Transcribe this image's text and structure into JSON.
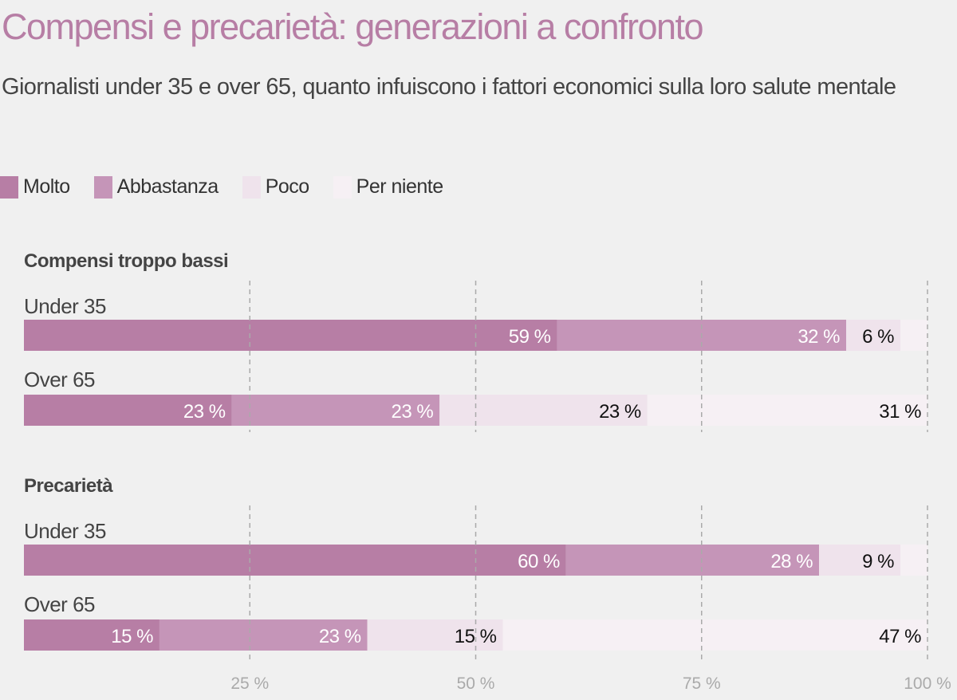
{
  "chart_data": {
    "type": "bar",
    "orientation": "horizontal-stacked",
    "title": "Compensi e precarietà: generazioni a confronto",
    "subtitle": "Giornalisti under 35 e over 65, quanto infuiscono i fattori economici sulla loro salute mentale",
    "legend_position": "top-left",
    "series": [
      {
        "name": "Molto",
        "color": "#b77ea5"
      },
      {
        "name": "Abbastanza",
        "color": "#c595b8"
      },
      {
        "name": "Poco",
        "color": "#efe3ec"
      },
      {
        "name": "Per niente",
        "color": "#f6f0f4"
      }
    ],
    "xlim": [
      0,
      100
    ],
    "x_ticks": [
      25,
      50,
      75,
      100
    ],
    "x_tick_labels": [
      "25 %",
      "50 %",
      "75 %",
      "100 %"
    ],
    "grid": true,
    "groups": [
      {
        "title": "Compensi troppo bassi",
        "rows": [
          {
            "label": "Under 35",
            "values": [
              59,
              32,
              6,
              3
            ],
            "labels": [
              "59 %",
              "32 %",
              "6 %",
              ""
            ]
          },
          {
            "label": "Over 65",
            "values": [
              23,
              23,
              23,
              31
            ],
            "labels": [
              "23 %",
              "23 %",
              "23 %",
              "31 %"
            ]
          }
        ]
      },
      {
        "title": "Precarietà",
        "rows": [
          {
            "label": "Under 35",
            "values": [
              60,
              28,
              9,
              3
            ],
            "labels": [
              "60 %",
              "28 %",
              "9 %",
              ""
            ]
          },
          {
            "label": "Over 65",
            "values": [
              15,
              23,
              15,
              47
            ],
            "labels": [
              "15 %",
              "23 %",
              "15 %",
              "47 %"
            ]
          }
        ]
      }
    ]
  }
}
